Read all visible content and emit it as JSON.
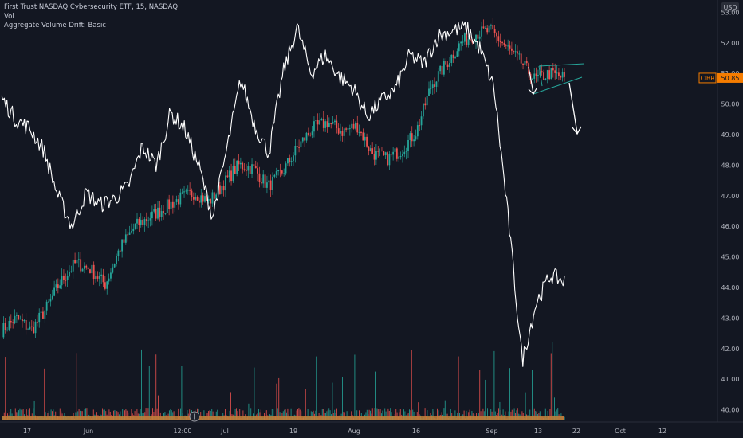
{
  "legend": {
    "title": "First Trust NASDAQ Cybersecurity ETF, 15, NASDAQ",
    "vol": "Vol",
    "indicator": "Aggregate Volume Drift: Basic"
  },
  "price_axis": {
    "currency": "USD"
  },
  "last_price": {
    "symbol": "CIBR",
    "value": "50.85",
    "color": "#f57c00"
  },
  "colors": {
    "background": "#131722",
    "up": "#26a69a",
    "down": "#ef5350",
    "drift_line": "#ffffff",
    "arrow": "#ffffff",
    "triangle": "#26a69a"
  },
  "chart_data": {
    "type": "line",
    "title": "First Trust NASDAQ Cybersecurity ETF, 15, NASDAQ",
    "xlabel": "",
    "ylabel": "",
    "y_ticks": [
      53.0,
      52.0,
      51.0,
      50.0,
      49.0,
      48.0,
      47.0,
      46.0,
      45.0,
      44.0,
      43.0,
      42.0,
      41.0,
      40.0
    ],
    "ylim": [
      39.6,
      53.4
    ],
    "x_ticks": [
      "17",
      "Jun",
      "12:00",
      "Jul",
      "19",
      "Aug",
      "16",
      "Sep",
      "13",
      "22",
      "Oct",
      "12"
    ],
    "grid": false,
    "series": [
      {
        "name": "CIBR",
        "style": "candles",
        "points": [
          {
            "t": "17",
            "v": 42.6
          },
          {
            "t": "",
            "v": 43.0
          },
          {
            "t": "",
            "v": 42.6
          },
          {
            "t": "",
            "v": 43.3
          },
          {
            "t": "",
            "v": 44.2
          },
          {
            "t": "",
            "v": 44.8
          },
          {
            "t": "Jun",
            "v": 44.6
          },
          {
            "t": "",
            "v": 44.1
          },
          {
            "t": "",
            "v": 45.3
          },
          {
            "t": "",
            "v": 46.0
          },
          {
            "t": "",
            "v": 46.3
          },
          {
            "t": "",
            "v": 46.6
          },
          {
            "t": "12:00",
            "v": 46.9
          },
          {
            "t": "",
            "v": 47.1
          },
          {
            "t": "",
            "v": 46.8
          },
          {
            "t": "Jul",
            "v": 47.4
          },
          {
            "t": "",
            "v": 48.0
          },
          {
            "t": "",
            "v": 47.9
          },
          {
            "t": "",
            "v": 47.3
          },
          {
            "t": "19",
            "v": 47.8
          },
          {
            "t": "",
            "v": 48.6
          },
          {
            "t": "",
            "v": 49.2
          },
          {
            "t": "",
            "v": 49.4
          },
          {
            "t": "Aug",
            "v": 49.1
          },
          {
            "t": "",
            "v": 49.3
          },
          {
            "t": "",
            "v": 48.4
          },
          {
            "t": "16",
            "v": 48.2
          },
          {
            "t": "",
            "v": 48.5
          },
          {
            "t": "",
            "v": 49.1
          },
          {
            "t": "",
            "v": 50.6
          },
          {
            "t": "",
            "v": 51.3
          },
          {
            "t": "",
            "v": 52.0
          },
          {
            "t": "Sep",
            "v": 52.3
          },
          {
            "t": "",
            "v": 52.4
          },
          {
            "t": "",
            "v": 51.9
          },
          {
            "t": "",
            "v": 51.4
          },
          {
            "t": "13",
            "v": 50.8
          },
          {
            "t": "",
            "v": 51.0
          },
          {
            "t": "",
            "v": 50.85
          }
        ]
      },
      {
        "name": "Aggregate Volume Drift",
        "style": "line",
        "points": [
          {
            "t": "17",
            "v": 50.2
          },
          {
            "t": "",
            "v": 49.5
          },
          {
            "t": "",
            "v": 49.2
          },
          {
            "t": "",
            "v": 48.5
          },
          {
            "t": "",
            "v": 47.0
          },
          {
            "t": "",
            "v": 46.0
          },
          {
            "t": "",
            "v": 47.1
          },
          {
            "t": "Jun",
            "v": 46.7
          },
          {
            "t": "",
            "v": 46.9
          },
          {
            "t": "",
            "v": 47.3
          },
          {
            "t": "",
            "v": 48.6
          },
          {
            "t": "",
            "v": 48.0
          },
          {
            "t": "12:00",
            "v": 49.7
          },
          {
            "t": "",
            "v": 49.2
          },
          {
            "t": "",
            "v": 48.0
          },
          {
            "t": "Jul",
            "v": 46.3
          },
          {
            "t": "",
            "v": 48.5
          },
          {
            "t": "",
            "v": 50.8
          },
          {
            "t": "",
            "v": 49.3
          },
          {
            "t": "19",
            "v": 48.4
          },
          {
            "t": "",
            "v": 51.0
          },
          {
            "t": "",
            "v": 52.5
          },
          {
            "t": "",
            "v": 51.0
          },
          {
            "t": "Aug",
            "v": 51.6
          },
          {
            "t": "",
            "v": 50.9
          },
          {
            "t": "",
            "v": 50.5
          },
          {
            "t": "16",
            "v": 49.6
          },
          {
            "t": "",
            "v": 50.1
          },
          {
            "t": "",
            "v": 50.5
          },
          {
            "t": "",
            "v": 51.6
          },
          {
            "t": "",
            "v": 51.3
          },
          {
            "t": "",
            "v": 52.2
          },
          {
            "t": "Sep",
            "v": 52.4
          },
          {
            "t": "",
            "v": 52.5
          },
          {
            "t": "",
            "v": 51.8
          },
          {
            "t": "",
            "v": 50.5
          },
          {
            "t": "",
            "v": 46.3
          },
          {
            "t": "13",
            "v": 41.6
          },
          {
            "t": "",
            "v": 43.5
          },
          {
            "t": "",
            "v": 44.4
          },
          {
            "t": "",
            "v": 44.2
          }
        ]
      }
    ]
  }
}
